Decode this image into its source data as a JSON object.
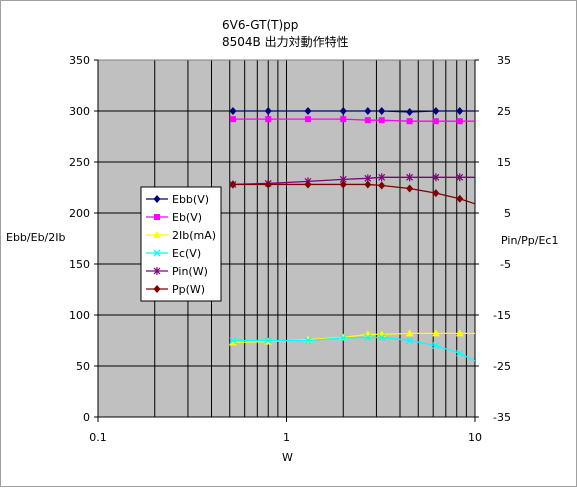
{
  "chart_data": {
    "type": "line",
    "title_lines": [
      "6V6-GT(T)pp",
      "8504B 出力対動作特性"
    ],
    "xlabel": "W",
    "ylabel_left": "Ebb/Eb/2Ib",
    "ylabel_right": "Pin/Pp/Ec1",
    "x_scale": "log",
    "xlim": [
      0.1,
      10
    ],
    "x_ticks": [
      0.1,
      1,
      10
    ],
    "x_tick_labels": [
      "0.1",
      "1",
      "10"
    ],
    "ylim_left": [
      0,
      350
    ],
    "y_ticks_left": [
      0,
      50,
      100,
      150,
      200,
      250,
      300,
      350
    ],
    "y_tick_labels_left": [
      "0",
      "50",
      "100",
      "150",
      "200",
      "250",
      "300",
      "350"
    ],
    "ylim_right": [
      -35,
      35
    ],
    "y_ticks_right": [
      -35,
      -25,
      -15,
      -5,
      5,
      15,
      25,
      35
    ],
    "y_tick_labels_right": [
      "-35",
      "-25",
      "-15",
      "-5",
      "5",
      "15",
      "25",
      "35"
    ],
    "grid": true,
    "plot_background": "#c0c0c0",
    "legend_position": "left",
    "series": [
      {
        "name": "Ebb(V)",
        "axis": "left",
        "color": "#000080",
        "marker": "diamond",
        "x": [
          0.52,
          0.8,
          1.3,
          2.0,
          2.7,
          3.2,
          4.5,
          6.2,
          8.3,
          10
        ],
        "y": [
          300,
          300,
          300,
          300,
          300,
          300,
          299,
          300,
          300,
          300
        ]
      },
      {
        "name": "Eb(V)",
        "axis": "left",
        "color": "#ff00ff",
        "marker": "square",
        "x": [
          0.52,
          0.8,
          1.3,
          2.0,
          2.7,
          3.2,
          4.5,
          6.2,
          8.3,
          10
        ],
        "y": [
          292,
          292,
          292,
          292,
          291,
          291,
          290,
          290,
          290,
          290
        ]
      },
      {
        "name": "2Ib(mA)",
        "axis": "left",
        "color": "#ffff00",
        "marker": "triangle",
        "x": [
          0.52,
          0.8,
          1.3,
          2.0,
          2.7,
          3.2,
          4.5,
          6.2,
          8.3,
          10
        ],
        "y": [
          73,
          74,
          76,
          78,
          81,
          81,
          82,
          82,
          82,
          82
        ]
      },
      {
        "name": "Ec(V)",
        "axis": "right",
        "color": "#00ffff",
        "marker": "x",
        "x": [
          0.52,
          0.8,
          1.3,
          2.0,
          2.7,
          3.2,
          4.5,
          6.2,
          8.3,
          10
        ],
        "y": [
          -20,
          -20,
          -20,
          -19.5,
          -19.4,
          -19.4,
          -20,
          -21,
          -22.5,
          -24
        ]
      },
      {
        "name": "Pin(W)",
        "axis": "right",
        "color": "#800080",
        "marker": "star",
        "x": [
          0.52,
          0.8,
          1.3,
          2.0,
          2.7,
          3.2,
          4.5,
          6.2,
          8.3,
          10
        ],
        "y": [
          10.6,
          10.8,
          11.2,
          11.6,
          11.8,
          12,
          12,
          12,
          12,
          12
        ]
      },
      {
        "name": "Pp(W)",
        "axis": "right",
        "color": "#800000",
        "marker": "diamond",
        "x": [
          0.52,
          0.8,
          1.3,
          2.0,
          2.7,
          3.2,
          4.5,
          6.2,
          8.3,
          10
        ],
        "y": [
          10.6,
          10.6,
          10.6,
          10.6,
          10.6,
          10.4,
          9.8,
          8.9,
          7.8,
          6.8
        ]
      }
    ]
  }
}
